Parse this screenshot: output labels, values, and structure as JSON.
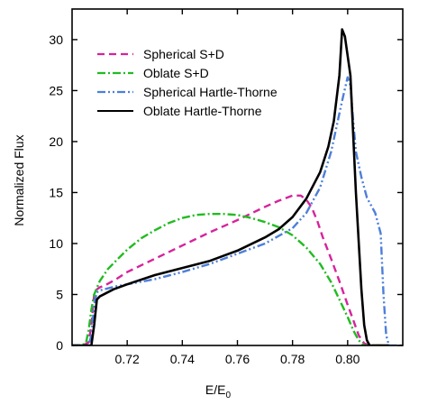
{
  "chart_data": {
    "type": "line",
    "xlabel": "E/E",
    "xlabel_sub": "0",
    "ylabel": "Normalized Flux",
    "xlim": [
      0.7,
      0.82
    ],
    "ylim": [
      0,
      33
    ],
    "xticks": [
      0.72,
      0.74,
      0.76,
      0.78,
      0.8
    ],
    "xtick_labels": [
      "0.72",
      "0.74",
      "0.76",
      "0.78",
      "0.80"
    ],
    "yticks": [
      0,
      5,
      10,
      15,
      20,
      25,
      30
    ],
    "ytick_labels": [
      "0",
      "5",
      "10",
      "15",
      "20",
      "25",
      "30"
    ],
    "grid": false,
    "legend_position": "top-left",
    "series": [
      {
        "name": "Spherical S+D",
        "color": "#d6239c",
        "dash": "8,5",
        "x": [
          0.7,
          0.704,
          0.706,
          0.707,
          0.708,
          0.709,
          0.71,
          0.712,
          0.716,
          0.72,
          0.73,
          0.74,
          0.75,
          0.76,
          0.77,
          0.775,
          0.78,
          0.783,
          0.785,
          0.787,
          0.789,
          0.791,
          0.794,
          0.797,
          0.8,
          0.802,
          0.804,
          0.806,
          0.808,
          0.815
        ],
        "y": [
          0,
          0,
          0.3,
          2.0,
          5.0,
          5.5,
          5.7,
          5.9,
          6.5,
          7.2,
          8.5,
          9.8,
          11.1,
          12.3,
          13.6,
          14.2,
          14.7,
          14.7,
          14.3,
          13.5,
          12.2,
          10.6,
          8.5,
          6.3,
          4.0,
          2.5,
          1.0,
          0.2,
          0,
          0
        ]
      },
      {
        "name": "Oblate S+D",
        "color": "#22bb22",
        "dash": "9,3,2,3",
        "x": [
          0.7,
          0.703,
          0.705,
          0.706,
          0.707,
          0.708,
          0.71,
          0.713,
          0.717,
          0.72,
          0.725,
          0.73,
          0.735,
          0.74,
          0.745,
          0.75,
          0.755,
          0.76,
          0.765,
          0.77,
          0.775,
          0.78,
          0.785,
          0.79,
          0.794,
          0.797,
          0.8,
          0.802,
          0.804,
          0.806,
          0.815
        ],
        "y": [
          0,
          0,
          0.2,
          1.5,
          3.5,
          5.0,
          6.3,
          7.5,
          8.6,
          9.4,
          10.5,
          11.3,
          12.0,
          12.5,
          12.8,
          12.9,
          12.9,
          12.8,
          12.5,
          12.1,
          11.6,
          10.8,
          9.6,
          8.0,
          6.2,
          4.5,
          2.8,
          1.5,
          0.5,
          0,
          0
        ]
      },
      {
        "name": "Spherical Hartle-Thorne",
        "color": "#4d7fd9",
        "dash": "9,3,2,3,2,3",
        "x": [
          0.7,
          0.706,
          0.707,
          0.708,
          0.709,
          0.71,
          0.713,
          0.716,
          0.72,
          0.73,
          0.74,
          0.75,
          0.76,
          0.77,
          0.78,
          0.785,
          0.79,
          0.794,
          0.796,
          0.798,
          0.8,
          0.801,
          0.802,
          0.803,
          0.805,
          0.807,
          0.81,
          0.812,
          0.813,
          0.814,
          0.815,
          0.82
        ],
        "y": [
          0,
          0,
          1.0,
          4.0,
          5.2,
          5.4,
          5.6,
          5.8,
          6.0,
          6.5,
          7.2,
          8.0,
          9.0,
          10.0,
          11.5,
          13.0,
          15.5,
          19.0,
          21.5,
          24.0,
          26.3,
          25.5,
          22.0,
          19.0,
          16.5,
          14.5,
          13.0,
          11.0,
          5.0,
          1.0,
          0,
          0
        ]
      },
      {
        "name": "Oblate Hartle-Thorne",
        "color": "#000000",
        "dash": "",
        "x": [
          0.7,
          0.707,
          0.708,
          0.709,
          0.71,
          0.715,
          0.72,
          0.73,
          0.74,
          0.75,
          0.76,
          0.77,
          0.775,
          0.78,
          0.785,
          0.79,
          0.793,
          0.795,
          0.797,
          0.798,
          0.799,
          0.801,
          0.803,
          0.805,
          0.806,
          0.807,
          0.808,
          0.815
        ],
        "y": [
          0,
          0,
          2.0,
          4.5,
          4.8,
          5.5,
          6.0,
          6.9,
          7.6,
          8.3,
          9.3,
          10.6,
          11.4,
          12.6,
          14.4,
          17.0,
          19.5,
          22.0,
          26.5,
          31.0,
          30.3,
          26.5,
          15.0,
          5.5,
          2.0,
          0.5,
          0,
          0
        ]
      }
    ]
  }
}
